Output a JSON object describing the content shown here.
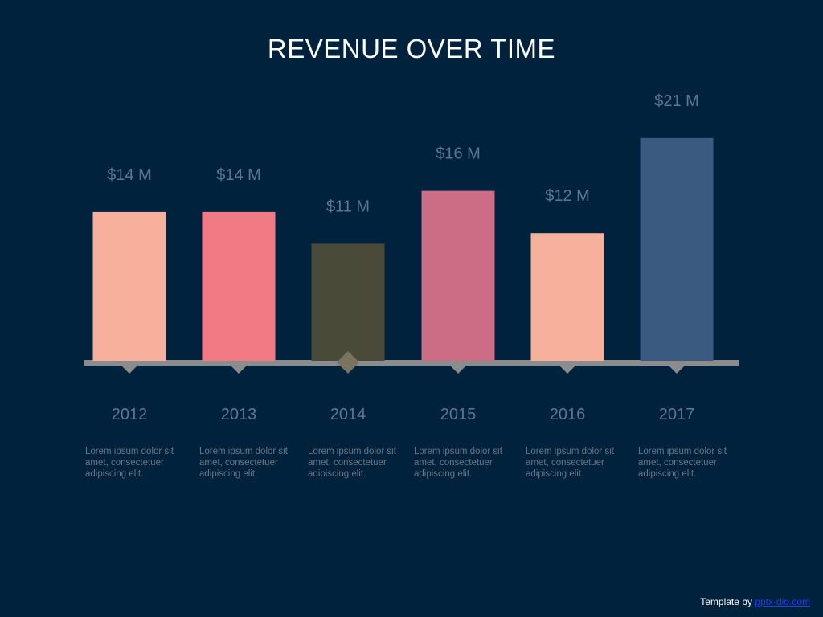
{
  "slide": {
    "title": "REVENUE OVER TIME",
    "footer_prefix": "Template by",
    "footer_link": "pptx-dio.com"
  },
  "chart_data": {
    "type": "bar",
    "categories": [
      "2012",
      "2013",
      "2014",
      "2015",
      "2016",
      "2017"
    ],
    "values": [
      14,
      14,
      11,
      16,
      12,
      21
    ],
    "data_labels": [
      "$14 M",
      "$14 M",
      "$11 M",
      "$16 M",
      "$12 M",
      "$21 M"
    ],
    "bar_colors": [
      "#f7b09b",
      "#f27a84",
      "#4a4a39",
      "#cc6c85",
      "#f7b09b",
      "#3a5a80"
    ],
    "descriptions": [
      "Lorem ipsum dolor sit amet, consectetuer adipiscing elit.",
      "Lorem ipsum dolor sit amet, consectetuer adipiscing elit.",
      "Lorem ipsum dolor sit amet, consectetuer adipiscing elit.",
      "Lorem ipsum dolor sit amet, consectetuer adipiscing elit.",
      "Lorem ipsum dolor sit amet, consectetuer adipiscing elit.",
      "Lorem ipsum dolor sit amet, consectetuer adipiscing elit."
    ],
    "ylim": [
      0,
      21
    ],
    "grid": false,
    "legend": "none",
    "colors": {
      "baseline": "#8c8c8c",
      "label": "#5d7795",
      "description": "#6b7785"
    }
  }
}
